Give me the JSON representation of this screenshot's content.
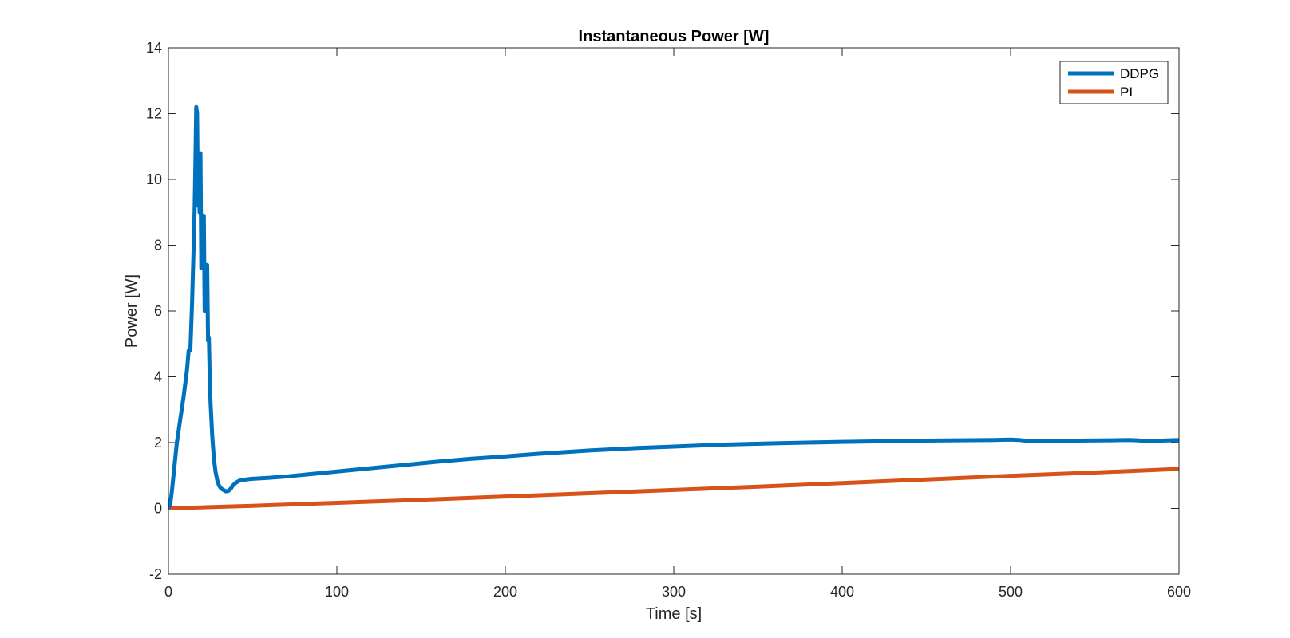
{
  "chart_data": {
    "type": "line",
    "title": "Instantaneous Power [W]",
    "xlabel": "Time [s]",
    "ylabel": "Power [W]",
    "xlim": [
      0,
      600
    ],
    "ylim": [
      -2,
      14
    ],
    "xticks": [
      "0",
      "100",
      "200",
      "300",
      "400",
      "500",
      "600"
    ],
    "yticks": [
      "-2",
      "0",
      "2",
      "4",
      "6",
      "8",
      "10",
      "12",
      "14"
    ],
    "grid": false,
    "legend_position": "top-right",
    "series": [
      {
        "name": "DDPG",
        "color": "#0072BD",
        "x": [
          0,
          1,
          2,
          3,
          5,
          7,
          9,
          11,
          12,
          13,
          14,
          15,
          15.5,
          16,
          16.5,
          17,
          17.5,
          18,
          18.5,
          19,
          19.5,
          20,
          20.5,
          21,
          21.5,
          22,
          22.5,
          23,
          23.5,
          24,
          24.5,
          25,
          26,
          27,
          28,
          29,
          30,
          31,
          32,
          33,
          34,
          35,
          36,
          37,
          38,
          40,
          42,
          45,
          48,
          50,
          60,
          70,
          80,
          100,
          120,
          140,
          160,
          180,
          200,
          220,
          250,
          280,
          300,
          330,
          360,
          400,
          450,
          490,
          500,
          505,
          510,
          520,
          540,
          560,
          570,
          575,
          580,
          590,
          600
        ],
        "y": [
          0.0,
          0.1,
          0.5,
          1.0,
          2.0,
          2.7,
          3.4,
          4.2,
          4.8,
          4.8,
          6.2,
          8.0,
          9.0,
          10.5,
          12.2,
          12.0,
          9.2,
          10.8,
          9.0,
          10.8,
          7.3,
          8.9,
          7.4,
          8.9,
          6.0,
          7.4,
          6.0,
          7.4,
          5.1,
          5.2,
          4.0,
          3.2,
          2.2,
          1.5,
          1.1,
          0.85,
          0.7,
          0.62,
          0.58,
          0.55,
          0.52,
          0.52,
          0.55,
          0.6,
          0.68,
          0.78,
          0.84,
          0.87,
          0.89,
          0.9,
          0.93,
          0.97,
          1.02,
          1.12,
          1.22,
          1.32,
          1.42,
          1.51,
          1.58,
          1.66,
          1.76,
          1.84,
          1.88,
          1.94,
          1.98,
          2.02,
          2.06,
          2.08,
          2.09,
          2.08,
          2.05,
          2.05,
          2.06,
          2.07,
          2.08,
          2.07,
          2.05,
          2.06,
          2.08
        ]
      },
      {
        "name": "PI",
        "color": "#D95319",
        "x": [
          0,
          50,
          100,
          150,
          200,
          250,
          300,
          350,
          400,
          450,
          500,
          550,
          600
        ],
        "y": [
          0.0,
          0.08,
          0.17,
          0.26,
          0.36,
          0.46,
          0.56,
          0.66,
          0.77,
          0.88,
          0.99,
          1.09,
          1.2
        ]
      }
    ]
  }
}
